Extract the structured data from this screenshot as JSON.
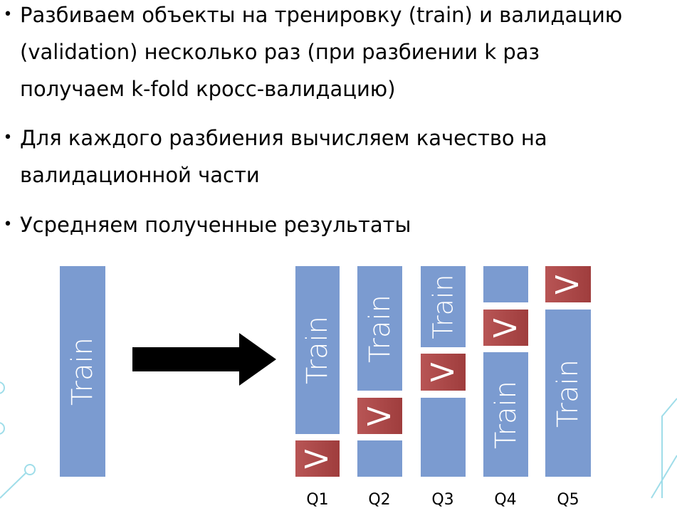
{
  "bullets": [
    {
      "lines": [
        "Разбиваем объекты на тренировку (train) и валидацию",
        "(validation) несколько раз (при разбиении k раз",
        "получаем k-fold кросс-валидацию)"
      ]
    },
    {
      "lines": [
        "Для каждого разбиения вычисляем качество на",
        "валидационной части"
      ]
    },
    {
      "lines": [
        "Усредняем полученные результаты"
      ]
    }
  ],
  "diagram": {
    "full_label": "Train",
    "train_label": "Train",
    "val_label": "V",
    "folds": [
      "Q1",
      "Q2",
      "Q3",
      "Q4",
      "Q5"
    ]
  },
  "colors": {
    "train": "#7b9bd0",
    "validation": "#b04a4a",
    "arrow": "#000000",
    "decor": "#7fd4e6"
  }
}
